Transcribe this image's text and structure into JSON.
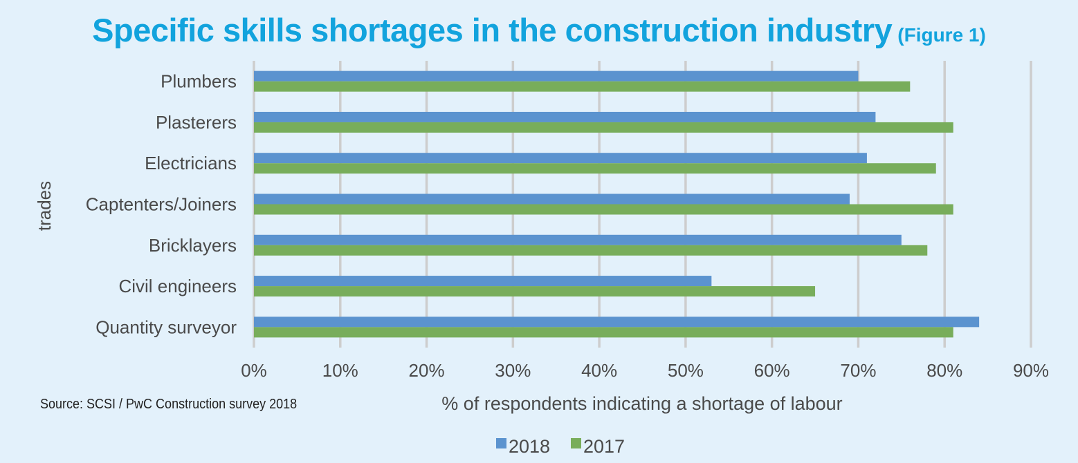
{
  "title": {
    "main": "Specific skills shortages in the construction industry",
    "sub": "(Figure 1)"
  },
  "source": "Source: SCSI / PwC Construction survey 2018",
  "colors": {
    "title": "#12a3dd",
    "series_2018": "#5b93cf",
    "series_2017": "#78ad5b",
    "grid": "#cdcdcd",
    "text": "#4a4a4a",
    "background": "#e3f1fb"
  },
  "chart_data": {
    "type": "bar",
    "orientation": "horizontal",
    "categories": [
      "Plumbers",
      "Plasterers",
      "Electricians",
      "Captenters/Joiners",
      "Bricklayers",
      "Civil engineers",
      "Quantity surveyor"
    ],
    "series": [
      {
        "name": "2018",
        "values": [
          70,
          72,
          71,
          69,
          75,
          53,
          84
        ]
      },
      {
        "name": "2017",
        "values": [
          76,
          81,
          79,
          81,
          78,
          65,
          81
        ]
      }
    ],
    "xlim": [
      0,
      90
    ],
    "xticks": [
      "0%",
      "10%",
      "20%",
      "30%",
      "40%",
      "50%",
      "60%",
      "70%",
      "80%",
      "90%"
    ],
    "xlabel": "% of respondents indicating a shortage of labour",
    "ylabel": "trades",
    "legend": [
      "2018",
      "2017"
    ],
    "legend_position": "bottom-center",
    "grid": true
  }
}
